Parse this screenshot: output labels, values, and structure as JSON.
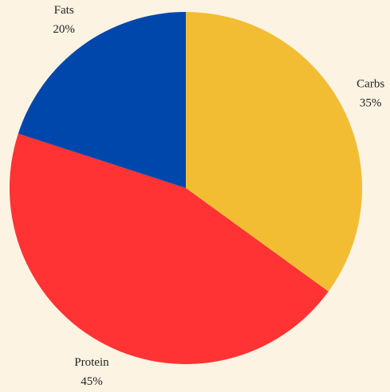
{
  "chart_data": {
    "type": "pie",
    "categories": [
      "Carbs",
      "Protein",
      "Fats"
    ],
    "values": [
      35,
      45,
      20
    ],
    "value_labels": [
      "35%",
      "45%",
      "20%"
    ],
    "colors": [
      "#f3bd33",
      "#ff3333",
      "#0047ab"
    ]
  }
}
